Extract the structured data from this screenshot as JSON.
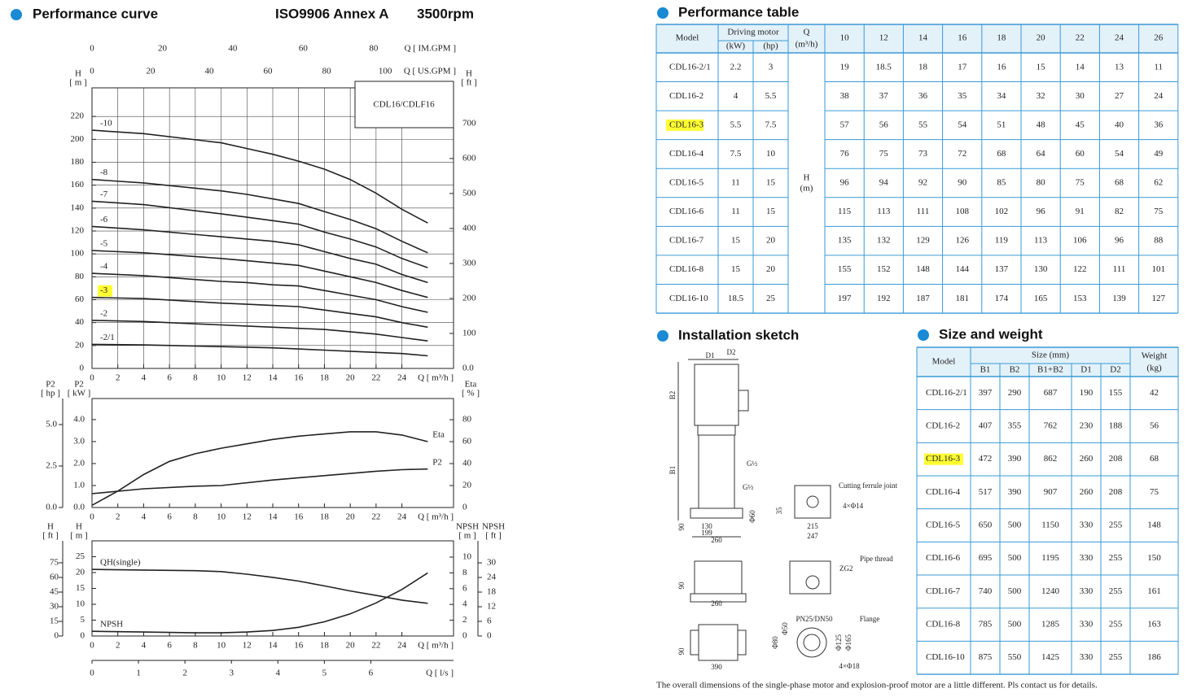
{
  "highlight_color": "#ffff33",
  "performance_curve": {
    "title": "Performance curve",
    "standard": "ISO9906 Annex A",
    "speed": "3500rpm"
  },
  "chart_data": [
    {
      "type": "line",
      "annotation": "CDL16/CDLF16",
      "x_label": "Q [ m³/h ]",
      "xlim": [
        0,
        28
      ],
      "xticks": [
        0,
        2,
        4,
        6,
        8,
        10,
        12,
        14,
        16,
        18,
        20,
        22,
        24
      ],
      "top_axes": [
        {
          "label": "Q [ IM.GPM ]",
          "lim": [
            0,
            102.7
          ],
          "ticks": [
            0,
            20,
            40,
            60,
            80
          ]
        },
        {
          "label": "Q [ US.GPM ]",
          "lim": [
            0,
            123.3
          ],
          "ticks": [
            0,
            20,
            40,
            60,
            80,
            100
          ]
        }
      ],
      "y_axes": [
        {
          "label": "H",
          "unit": "[ m ]",
          "lim": [
            0,
            245
          ],
          "ticks": [
            0,
            20,
            40,
            60,
            80,
            100,
            120,
            140,
            160,
            180,
            200,
            220
          ]
        },
        {
          "label": "H",
          "unit": "[ ft ]",
          "lim": [
            0,
            802
          ],
          "ticks": [
            {
              "value": 0,
              "label": "0.0"
            },
            100,
            200,
            300,
            400,
            500,
            600,
            700
          ]
        }
      ],
      "grid": true,
      "series_label": "start",
      "color": "#222222",
      "series": [
        {
          "name": "-10",
          "axis": 0,
          "x": [
            0,
            4,
            10,
            12,
            14,
            16,
            18,
            20,
            22,
            24,
            26
          ],
          "values": [
            208,
            205,
            197,
            192,
            187,
            181,
            174,
            165,
            153,
            139,
            127
          ]
        },
        {
          "name": "-8",
          "axis": 0,
          "x": [
            0,
            4,
            10,
            12,
            14,
            16,
            18,
            20,
            22,
            24,
            26
          ],
          "values": [
            165,
            162,
            155,
            152,
            148,
            144,
            137,
            130,
            122,
            111,
            101
          ]
        },
        {
          "name": "-7",
          "axis": 0,
          "x": [
            0,
            4,
            10,
            12,
            14,
            16,
            18,
            20,
            22,
            24,
            26
          ],
          "values": [
            146,
            143,
            135,
            132,
            129,
            126,
            119,
            113,
            106,
            96,
            88
          ]
        },
        {
          "name": "-6",
          "axis": 0,
          "x": [
            0,
            4,
            10,
            12,
            14,
            16,
            18,
            20,
            22,
            24,
            26
          ],
          "values": [
            124,
            121,
            115,
            113,
            111,
            108,
            102,
            96,
            91,
            82,
            75
          ]
        },
        {
          "name": "-5",
          "axis": 0,
          "x": [
            0,
            4,
            10,
            12,
            14,
            16,
            18,
            20,
            22,
            24,
            26
          ],
          "values": [
            103,
            101,
            96,
            94,
            92,
            90,
            85,
            80,
            75,
            68,
            62
          ]
        },
        {
          "name": "-4",
          "axis": 0,
          "x": [
            0,
            4,
            10,
            12,
            14,
            16,
            18,
            20,
            22,
            24,
            26
          ],
          "values": [
            83,
            81,
            76,
            75,
            73,
            72,
            68,
            64,
            60,
            54,
            49
          ]
        },
        {
          "name": "-3",
          "axis": 0,
          "highlight": true,
          "x": [
            0,
            4,
            10,
            12,
            14,
            16,
            18,
            20,
            22,
            24,
            26
          ],
          "values": [
            62,
            61,
            57,
            56,
            55,
            54,
            51,
            48,
            45,
            40,
            36
          ]
        },
        {
          "name": "-2",
          "axis": 0,
          "x": [
            0,
            4,
            10,
            12,
            14,
            16,
            18,
            20,
            22,
            24,
            26
          ],
          "values": [
            42,
            41,
            38,
            37,
            36,
            35,
            34,
            32,
            30,
            27,
            24
          ]
        },
        {
          "name": "-2/1",
          "axis": 0,
          "x": [
            0,
            4,
            10,
            12,
            14,
            16,
            18,
            20,
            22,
            24,
            26
          ],
          "values": [
            21,
            20.5,
            19,
            18.5,
            18,
            17,
            16,
            15,
            14,
            13,
            11
          ]
        }
      ]
    },
    {
      "type": "line",
      "x_label": "Q [ m³/h ]",
      "xlim": [
        0,
        28
      ],
      "xticks": [
        0,
        2,
        4,
        6,
        8,
        10,
        12,
        14,
        16,
        18,
        20,
        22,
        24
      ],
      "y_axes": [
        {
          "label": "P2",
          "unit": "[ hp ]",
          "lim": [
            0,
            6.57
          ],
          "ticks": [
            {
              "value": 0,
              "label": "0.0"
            },
            2.5,
            {
              "value": 5,
              "label": "5.0"
            }
          ]
        },
        {
          "label": "P2",
          "unit": "[ kW ]",
          "lim": [
            0,
            4.96
          ],
          "ticks": [
            {
              "value": 0,
              "label": "0.0"
            },
            {
              "value": 1,
              "label": "1.0"
            },
            {
              "value": 2,
              "label": "2.0"
            },
            {
              "value": 3,
              "label": "3.0"
            },
            {
              "value": 4,
              "label": "4.0"
            }
          ]
        },
        {
          "label": "Eta",
          "unit": "[ % ]",
          "lim": [
            0,
            99.3
          ],
          "ticks": [
            0,
            20,
            40,
            60,
            80
          ]
        }
      ],
      "grid": false,
      "series_label": "end",
      "color": "#222222",
      "series": [
        {
          "name": "Eta",
          "axis": 2,
          "x": [
            0,
            2,
            4,
            6,
            8,
            10,
            12,
            14,
            16,
            18,
            20,
            22,
            24,
            26
          ],
          "values": [
            2,
            15,
            30,
            42,
            49,
            54,
            58,
            62,
            65,
            67,
            69,
            69,
            66,
            60
          ]
        },
        {
          "name": "P2",
          "axis": 1,
          "x": [
            0,
            4,
            8,
            10,
            14,
            18,
            22,
            24,
            26
          ],
          "values": [
            0.63,
            0.85,
            0.97,
            1.0,
            1.25,
            1.45,
            1.65,
            1.72,
            1.75
          ]
        }
      ]
    },
    {
      "type": "line",
      "x_label": "Q [ m³/h ]",
      "xlim": [
        0,
        28
      ],
      "xticks": [
        0,
        2,
        4,
        6,
        8,
        10,
        12,
        14,
        16,
        18,
        20,
        22,
        24
      ],
      "y_axes": [
        {
          "label": "H",
          "unit": "[ ft ]",
          "lim": [
            0,
            97.5
          ],
          "ticks": [
            0,
            15,
            30,
            45,
            60,
            75
          ]
        },
        {
          "label": "H",
          "unit": "[ m ]",
          "lim": [
            0,
            30
          ],
          "ticks": [
            0,
            5,
            10,
            15,
            20,
            25
          ]
        },
        {
          "label": "NPSH",
          "unit": "[ m ]",
          "lim": [
            0,
            12.06
          ],
          "ticks": [
            0,
            2,
            4,
            6,
            8,
            10
          ]
        },
        {
          "label": "NPSH",
          "unit": "[ ft ]",
          "lim": [
            0,
            39
          ],
          "ticks": [
            0,
            6,
            12,
            18,
            24,
            30
          ]
        }
      ],
      "bottom_axis": {
        "label": "Q [ l/s ]",
        "lim": [
          0,
          7.78
        ],
        "ticks": [
          0,
          1,
          2,
          3,
          4,
          5,
          6
        ]
      },
      "grid": false,
      "series_label": "start",
      "color": "#222222",
      "series": [
        {
          "name": "QH(single)",
          "axis": 1,
          "x": [
            0,
            4,
            8,
            10,
            12,
            14,
            16,
            18,
            20,
            22,
            24,
            26
          ],
          "values": [
            21,
            20.8,
            20.6,
            20.3,
            19.5,
            18.5,
            17.3,
            15.8,
            14.2,
            12.8,
            11.3,
            10.3
          ]
        },
        {
          "name": "NPSH",
          "axis": 2,
          "x": [
            0,
            4,
            8,
            10,
            12,
            14,
            16,
            18,
            20,
            22,
            24,
            26
          ],
          "values": [
            0.6,
            0.5,
            0.4,
            0.4,
            0.5,
            0.7,
            1.1,
            1.8,
            2.8,
            4.2,
            5.9,
            8.0
          ]
        }
      ]
    }
  ],
  "performance_table": {
    "title": "Performance table",
    "header": {
      "model": "Model",
      "motor": "Driving motor",
      "kw": "(kW)",
      "hp": "(hp)",
      "q": "Q",
      "q_unit": "(m³/h)",
      "h": "H",
      "h_unit": "(m)"
    },
    "flows": [
      10,
      12,
      14,
      16,
      18,
      20,
      22,
      24,
      26
    ],
    "highlight_row": 2,
    "rows": [
      {
        "model": "CDL16-2/1",
        "kw": 2.2,
        "hp": 3,
        "heads": [
          19,
          18.5,
          18,
          17,
          16,
          15,
          14,
          13,
          11
        ]
      },
      {
        "model": "CDL16-2",
        "kw": 4,
        "hp": 5.5,
        "heads": [
          38,
          37,
          36,
          35,
          34,
          32,
          30,
          27,
          24
        ]
      },
      {
        "model": "CDL16-3",
        "kw": 5.5,
        "hp": 7.5,
        "heads": [
          57,
          56,
          55,
          54,
          51,
          48,
          45,
          40,
          36
        ]
      },
      {
        "model": "CDL16-4",
        "kw": 7.5,
        "hp": 10,
        "heads": [
          76,
          75,
          73,
          72,
          68,
          64,
          60,
          54,
          49
        ]
      },
      {
        "model": "CDL16-5",
        "kw": 11,
        "hp": 15,
        "heads": [
          96,
          94,
          92,
          90,
          85,
          80,
          75,
          68,
          62
        ]
      },
      {
        "model": "CDL16-6",
        "kw": 11,
        "hp": 15,
        "heads": [
          115,
          113,
          111,
          108,
          102,
          96,
          91,
          82,
          75
        ]
      },
      {
        "model": "CDL16-7",
        "kw": 15,
        "hp": 20,
        "heads": [
          135,
          132,
          129,
          126,
          119,
          113,
          106,
          96,
          88
        ]
      },
      {
        "model": "CDL16-8",
        "kw": 15,
        "hp": 20,
        "heads": [
          155,
          152,
          148,
          144,
          137,
          130,
          122,
          111,
          101
        ]
      },
      {
        "model": "CDL16-10",
        "kw": 18.5,
        "hp": 25,
        "heads": [
          197,
          192,
          187,
          181,
          174,
          165,
          153,
          139,
          127
        ]
      }
    ]
  },
  "installation_sketch": {
    "title": "Installation sketch",
    "labels": [
      "D1",
      "D2",
      "B2",
      "B1",
      "G½",
      "G½",
      "90",
      "130",
      "199",
      "260",
      "Φ60",
      "Cutting ferrule joint",
      "4×Φ14",
      "35",
      "215",
      "247",
      "Pipe thread",
      "ZG2",
      "90",
      "260",
      "90",
      "390",
      "PN25/DN50",
      "Flange",
      "Φ50",
      "Φ80",
      "Φ125",
      "Φ165",
      "4×Φ18"
    ]
  },
  "size_table": {
    "title": "Size and weight",
    "header": {
      "model": "Model",
      "size": "Size (mm)",
      "cols": [
        "B1",
        "B2",
        "B1+B2",
        "D1",
        "D2"
      ],
      "weight": "Weight",
      "weight_unit": "(kg)"
    },
    "highlight_row": 2,
    "rows": [
      {
        "model": "CDL16-2/1",
        "size": [
          397,
          290,
          687,
          190,
          155
        ],
        "weight": 42
      },
      {
        "model": "CDL16-2",
        "size": [
          407,
          355,
          762,
          230,
          188
        ],
        "weight": 56
      },
      {
        "model": "CDL16-3",
        "size": [
          472,
          390,
          862,
          260,
          208
        ],
        "weight": 68
      },
      {
        "model": "CDL16-4",
        "size": [
          517,
          390,
          907,
          260,
          208
        ],
        "weight": 75
      },
      {
        "model": "CDL16-5",
        "size": [
          650,
          500,
          1150,
          330,
          255
        ],
        "weight": 148
      },
      {
        "model": "CDL16-6",
        "size": [
          695,
          500,
          1195,
          330,
          255
        ],
        "weight": 150
      },
      {
        "model": "CDL16-7",
        "size": [
          740,
          500,
          1240,
          330,
          255
        ],
        "weight": 161
      },
      {
        "model": "CDL16-8",
        "size": [
          785,
          500,
          1285,
          330,
          255
        ],
        "weight": 163
      },
      {
        "model": "CDL16-10",
        "size": [
          875,
          550,
          1425,
          330,
          255
        ],
        "weight": 186
      }
    ]
  },
  "footnote": "The overall dimensions of the single-phase motor and explosion-proof motor are a little different. Pls contact us for details."
}
